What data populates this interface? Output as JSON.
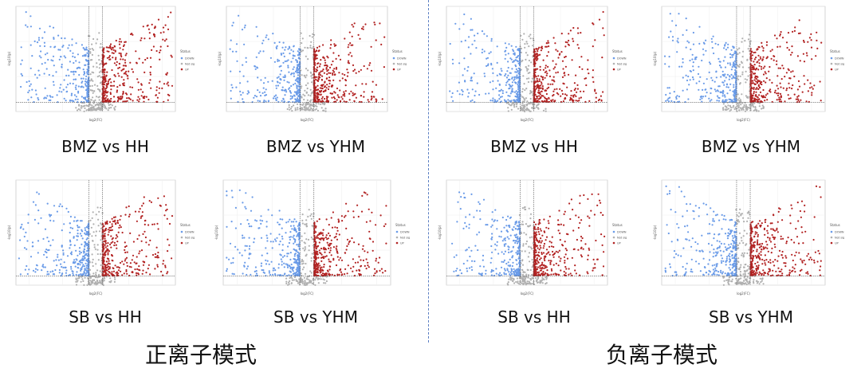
{
  "colors": {
    "down": "#6a9be8",
    "not_sig": "#b0b0b0",
    "up": "#b22222",
    "divider": "#5b7fc4"
  },
  "modes": {
    "positive": "正离子模式",
    "negative": "负离子模式"
  },
  "chart_data": [
    {
      "type": "scatter",
      "subtype": "volcano",
      "title": "BMZ vs HH",
      "mode": "positive",
      "xlabel": "log2(FC)",
      "ylabel": "-log10(p)",
      "legend": {
        "title": "Status",
        "entries": [
          "DOWN",
          "Not sig",
          "UP"
        ],
        "position": "right"
      },
      "thresholds": {
        "log2fc": [
          -1,
          1
        ],
        "pvalue_line": 1.3
      },
      "xlim": [
        -12,
        12
      ],
      "ylim": [
        0,
        15
      ],
      "grid": true
    },
    {
      "type": "scatter",
      "subtype": "volcano",
      "title": "BMZ vs YHM",
      "mode": "positive",
      "xlabel": "log2(FC)",
      "ylabel": "-log10(p)",
      "legend": {
        "title": "Status",
        "entries": [
          "DOWN",
          "Not sig",
          "UP"
        ],
        "position": "right"
      },
      "thresholds": {
        "log2fc": [
          -1,
          1
        ],
        "pvalue_line": 1.3
      },
      "xlim": [
        -12,
        12
      ],
      "ylim": [
        0,
        15
      ],
      "grid": true
    },
    {
      "type": "scatter",
      "subtype": "volcano",
      "title": "BMZ vs HH",
      "mode": "negative",
      "xlabel": "log2(FC)",
      "ylabel": "-log10(p)",
      "legend": {
        "title": "Status",
        "entries": [
          "DOWN",
          "Not sig",
          "UP"
        ],
        "position": "right"
      },
      "thresholds": {
        "log2fc": [
          -1,
          1
        ],
        "pvalue_line": 1.3
      },
      "xlim": [
        -12,
        12
      ],
      "ylim": [
        0,
        15
      ],
      "grid": true
    },
    {
      "type": "scatter",
      "subtype": "volcano",
      "title": "BMZ vs YHM",
      "mode": "negative",
      "xlabel": "log2(FC)",
      "ylabel": "-log10(p)",
      "legend": {
        "title": "Status",
        "entries": [
          "DOWN",
          "Not sig",
          "UP"
        ],
        "position": "right"
      },
      "thresholds": {
        "log2fc": [
          -1,
          1
        ],
        "pvalue_line": 1.3
      },
      "xlim": [
        -12,
        12
      ],
      "ylim": [
        0,
        15
      ],
      "grid": true
    },
    {
      "type": "scatter",
      "subtype": "volcano",
      "title": "SB vs HH",
      "mode": "positive",
      "xlabel": "log2(FC)",
      "ylabel": "-log10(p)",
      "legend": {
        "title": "Status",
        "entries": [
          "DOWN",
          "Not sig",
          "UP"
        ],
        "position": "right"
      },
      "thresholds": {
        "log2fc": [
          -1,
          1
        ],
        "pvalue_line": 1.3
      },
      "xlim": [
        -12,
        12
      ],
      "ylim": [
        0,
        15
      ],
      "grid": true
    },
    {
      "type": "scatter",
      "subtype": "volcano",
      "title": "SB vs YHM",
      "mode": "positive",
      "xlabel": "log2(FC)",
      "ylabel": "-log10(p)",
      "legend": {
        "title": "Status",
        "entries": [
          "DOWN",
          "Not sig",
          "UP"
        ],
        "position": "right"
      },
      "thresholds": {
        "log2fc": [
          -1,
          1
        ],
        "pvalue_line": 1.3
      },
      "xlim": [
        -12,
        12
      ],
      "ylim": [
        0,
        15
      ],
      "grid": true
    },
    {
      "type": "scatter",
      "subtype": "volcano",
      "title": "SB vs HH",
      "mode": "negative",
      "xlabel": "log2(FC)",
      "ylabel": "-log10(p)",
      "legend": {
        "title": "Status",
        "entries": [
          "DOWN",
          "Not sig",
          "UP"
        ],
        "position": "right"
      },
      "thresholds": {
        "log2fc": [
          -1,
          1
        ],
        "pvalue_line": 1.3
      },
      "xlim": [
        -12,
        12
      ],
      "ylim": [
        0,
        15
      ],
      "grid": true
    },
    {
      "type": "scatter",
      "subtype": "volcano",
      "title": "SB vs YHM",
      "mode": "negative",
      "xlabel": "log2(FC)",
      "ylabel": "-log10(p)",
      "legend": {
        "title": "Status",
        "entries": [
          "DOWN",
          "Not sig",
          "UP"
        ],
        "position": "right"
      },
      "thresholds": {
        "log2fc": [
          -1,
          1
        ],
        "pvalue_line": 1.3
      },
      "xlim": [
        -12,
        12
      ],
      "ylim": [
        0,
        15
      ],
      "grid": true
    }
  ]
}
